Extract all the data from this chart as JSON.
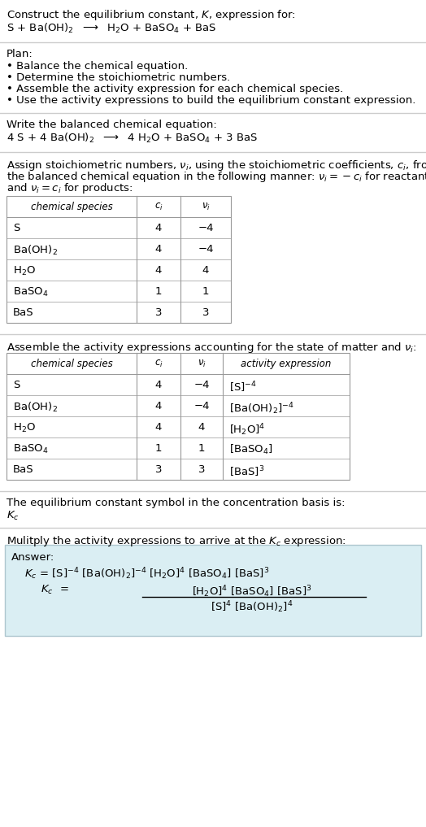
{
  "title_line1": "Construct the equilibrium constant, $K$, expression for:",
  "reaction_unbalanced": "S + Ba(OH)$_2$  $\\longrightarrow$  H$_2$O + BaSO$_4$ + BaS",
  "plan_header": "Plan:",
  "plan_items": [
    "• Balance the chemical equation.",
    "• Determine the stoichiometric numbers.",
    "• Assemble the activity expression for each chemical species.",
    "• Use the activity expressions to build the equilibrium constant expression."
  ],
  "balanced_header": "Write the balanced chemical equation:",
  "balanced_eq": "4 S + 4 Ba(OH)$_2$  $\\longrightarrow$  4 H$_2$O + BaSO$_4$ + 3 BaS",
  "stoich_intro_parts": [
    "Assign stoichiometric numbers, $\\nu_i$, using the stoichiometric coefficients, $c_i$, from",
    "the balanced chemical equation in the following manner: $\\nu_i = -c_i$ for reactants",
    "and $\\nu_i = c_i$ for products:"
  ],
  "table1_headers": [
    "chemical species",
    "$c_i$",
    "$\\nu_i$"
  ],
  "table1_rows": [
    [
      "S",
      "4",
      "−4"
    ],
    [
      "Ba(OH)$_2$",
      "4",
      "−4"
    ],
    [
      "H$_2$O",
      "4",
      "4"
    ],
    [
      "BaSO$_4$",
      "1",
      "1"
    ],
    [
      "BaS",
      "3",
      "3"
    ]
  ],
  "activity_intro": "Assemble the activity expressions accounting for the state of matter and $\\nu_i$:",
  "table2_headers": [
    "chemical species",
    "$c_i$",
    "$\\nu_i$",
    "activity expression"
  ],
  "table2_rows": [
    [
      "S",
      "4",
      "−4",
      "[S]$^{-4}$"
    ],
    [
      "Ba(OH)$_2$",
      "4",
      "−4",
      "[Ba(OH)$_2$]$^{-4}$"
    ],
    [
      "H$_2$O",
      "4",
      "4",
      "[H$_2$O]$^{4}$"
    ],
    [
      "BaSO$_4$",
      "1",
      "1",
      "[BaSO$_4$]"
    ],
    [
      "BaS",
      "3",
      "3",
      "[BaS]$^{3}$"
    ]
  ],
  "kc_text": "The equilibrium constant symbol in the concentration basis is:",
  "kc_symbol": "$K_c$",
  "multiply_text": "Mulitply the activity expressions to arrive at the $K_c$ expression:",
  "answer_label": "Answer:",
  "answer_line1_parts": [
    "$K_c$",
    " = [S]$^{-4}$ [Ba(OH)$_2$]$^{-4}$ [H$_2$O]$^{4}$ [BaSO$_4$] [BaS]$^{3}$",
    " = "
  ],
  "answer_num": "[H$_2$O]$^4$ [BaSO$_4$] [BaS]$^3$",
  "answer_den": "[S]$^4$ [Ba(OH)$_2$]$^4$",
  "answer_box_color": "#daeef3",
  "answer_box_edge": "#aec6cf",
  "bg_color": "#ffffff",
  "sep_color": "#cccccc",
  "table_color": "#999999",
  "font_size": 9.5,
  "small_font": 8.5
}
